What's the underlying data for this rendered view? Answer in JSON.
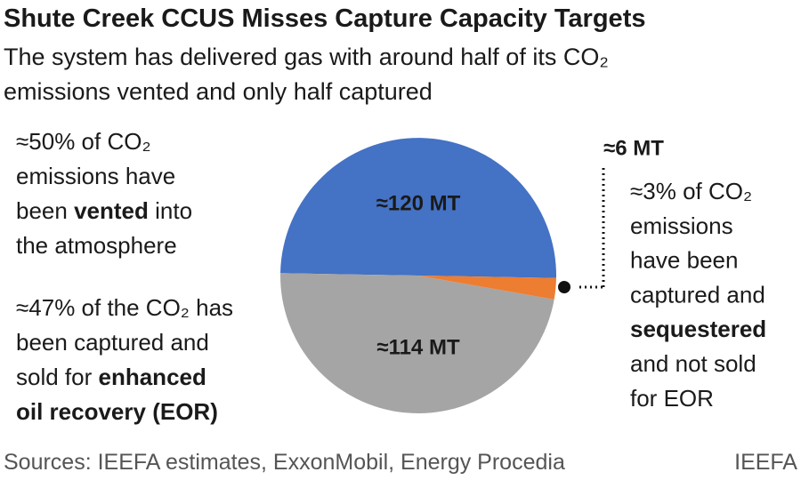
{
  "chart_data": {
    "type": "pie",
    "title": "Shute Creek CCUS Misses Capture Capacity Targets",
    "subtitle": [
      "The system has delivered gas with around half of its CO₂",
      "emissions vented and only half captured"
    ],
    "values": [
      120,
      114,
      6
    ],
    "value_labels": [
      "≈120 MT",
      "≈114 MT",
      "≈6 MT"
    ],
    "colors": [
      "#4472c4",
      "#a5a5a5",
      "#ed7d31"
    ],
    "annotations": [
      [
        [
          {
            "text": "≈50% of CO₂"
          }
        ],
        [
          {
            "text": "emissions have"
          }
        ],
        [
          {
            "text": "been "
          },
          {
            "text": "vented",
            "bold": true
          },
          {
            "text": " into"
          }
        ],
        [
          {
            "text": "the atmosphere"
          }
        ]
      ],
      [
        [
          {
            "text": "≈47% of the CO₂ has"
          }
        ],
        [
          {
            "text": "been captured and"
          }
        ],
        [
          {
            "text": "sold for "
          },
          {
            "text": "enhanced",
            "bold": true
          }
        ],
        [
          {
            "text": "oil recovery (EOR)",
            "bold": true
          }
        ]
      ],
      [
        [
          {
            "text": "≈3% of CO₂"
          }
        ],
        [
          {
            "text": "emissions"
          }
        ],
        [
          {
            "text": "have been"
          }
        ],
        [
          {
            "text": "captured and"
          }
        ],
        [
          {
            "text": "sequestered",
            "bold": true
          }
        ],
        [
          {
            "text": "and not sold"
          }
        ],
        [
          {
            "text": "for EOR"
          }
        ]
      ]
    ],
    "source": "Sources: IEEFA estimates, ExxonMobil, Energy Procedia",
    "credit": "IEEFA"
  }
}
